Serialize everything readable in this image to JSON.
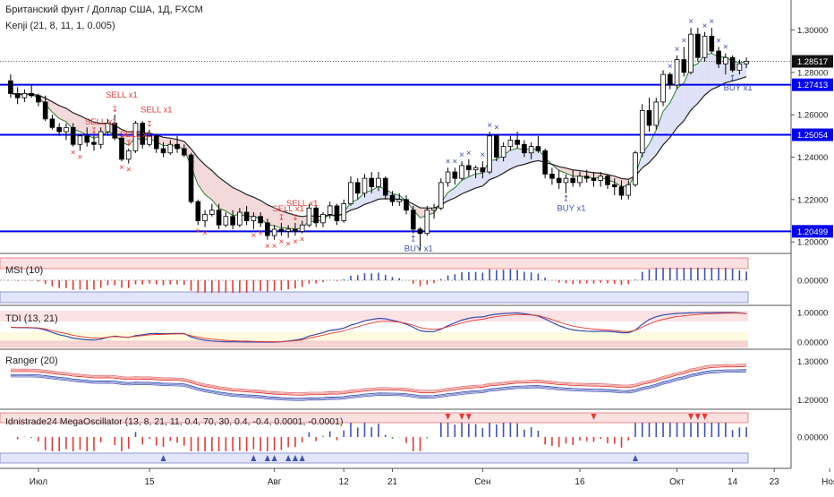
{
  "header": {
    "title": "Британский фунт / Доллар США, 1Д, FXCM",
    "indicator": "Kenji (21, 8, 11, 1, 0.005)"
  },
  "colors": {
    "up": "#ffffff",
    "down": "#000000",
    "level": "#0000ee",
    "sell": "#e53935",
    "buy": "#3f51b5",
    "cloud_pink": "#f3d9d9",
    "cloud_blue": "#dfe2f7"
  },
  "chart_data": [
    {
      "type": "candlestick",
      "name": "main",
      "y_ticks": [
        "1.30000",
        "1.28000",
        "1.26000",
        "1.24000",
        "1.22000",
        "1.20000"
      ],
      "ylim": [
        1.195,
        1.312
      ],
      "x_ticks": [
        "Июл",
        "15",
        "Авг",
        "12",
        "21",
        "Сен",
        "16",
        "Окт",
        "14",
        "23",
        "Ноя"
      ],
      "current_price": "1.28517",
      "levels": [
        "1.27413",
        "1.25054",
        "1.20499"
      ],
      "candles": [
        [
          1.276,
          1.279,
          1.268,
          1.27
        ],
        [
          1.27,
          1.273,
          1.265,
          1.268
        ],
        [
          1.268,
          1.272,
          1.266,
          1.27
        ],
        [
          1.27,
          1.274,
          1.268,
          1.269
        ],
        [
          1.269,
          1.27,
          1.264,
          1.266
        ],
        [
          1.266,
          1.269,
          1.257,
          1.258
        ],
        [
          1.258,
          1.26,
          1.253,
          1.254
        ],
        [
          1.254,
          1.256,
          1.25,
          1.252
        ],
        [
          1.252,
          1.256,
          1.248,
          1.254
        ],
        [
          1.254,
          1.256,
          1.245,
          1.246
        ],
        [
          1.246,
          1.251,
          1.243,
          1.25
        ],
        [
          1.25,
          1.254,
          1.245,
          1.247
        ],
        [
          1.247,
          1.25,
          1.243,
          1.246
        ],
        [
          1.246,
          1.254,
          1.244,
          1.252
        ],
        [
          1.252,
          1.258,
          1.25,
          1.256
        ],
        [
          1.256,
          1.26,
          1.248,
          1.249
        ],
        [
          1.249,
          1.25,
          1.238,
          1.239
        ],
        [
          1.239,
          1.244,
          1.237,
          1.243
        ],
        [
          1.243,
          1.257,
          1.242,
          1.256
        ],
        [
          1.256,
          1.257,
          1.244,
          1.246
        ],
        [
          1.246,
          1.253,
          1.245,
          1.25
        ],
        [
          1.25,
          1.251,
          1.242,
          1.244
        ],
        [
          1.244,
          1.247,
          1.24,
          1.242
        ],
        [
          1.242,
          1.248,
          1.241,
          1.246
        ],
        [
          1.246,
          1.25,
          1.242,
          1.244
        ],
        [
          1.244,
          1.246,
          1.24,
          1.241
        ],
        [
          1.241,
          1.242,
          1.218,
          1.219
        ],
        [
          1.219,
          1.22,
          1.208,
          1.21
        ],
        [
          1.21,
          1.215,
          1.207,
          1.213
        ],
        [
          1.213,
          1.218,
          1.212,
          1.215
        ],
        [
          1.215,
          1.218,
          1.206,
          1.208
        ],
        [
          1.208,
          1.214,
          1.207,
          1.212
        ],
        [
          1.212,
          1.215,
          1.206,
          1.208
        ],
        [
          1.208,
          1.216,
          1.207,
          1.214
        ],
        [
          1.214,
          1.217,
          1.208,
          1.21
        ],
        [
          1.21,
          1.214,
          1.206,
          1.212
        ],
        [
          1.212,
          1.214,
          1.207,
          1.209
        ],
        [
          1.209,
          1.211,
          1.201,
          1.203
        ],
        [
          1.203,
          1.208,
          1.201,
          1.206
        ],
        [
          1.206,
          1.209,
          1.203,
          1.205
        ],
        [
          1.205,
          1.208,
          1.202,
          1.206
        ],
        [
          1.206,
          1.209,
          1.203,
          1.205
        ],
        [
          1.205,
          1.21,
          1.204,
          1.208
        ],
        [
          1.208,
          1.218,
          1.207,
          1.216
        ],
        [
          1.216,
          1.217,
          1.207,
          1.209
        ],
        [
          1.209,
          1.214,
          1.207,
          1.213
        ],
        [
          1.213,
          1.219,
          1.211,
          1.217
        ],
        [
          1.217,
          1.218,
          1.208,
          1.21
        ],
        [
          1.21,
          1.22,
          1.209,
          1.218
        ],
        [
          1.218,
          1.231,
          1.217,
          1.228
        ],
        [
          1.228,
          1.23,
          1.22,
          1.223
        ],
        [
          1.223,
          1.232,
          1.221,
          1.23
        ],
        [
          1.23,
          1.233,
          1.223,
          1.226
        ],
        [
          1.226,
          1.233,
          1.224,
          1.23
        ],
        [
          1.23,
          1.231,
          1.22,
          1.222
        ],
        [
          1.222,
          1.224,
          1.217,
          1.219
        ],
        [
          1.219,
          1.223,
          1.217,
          1.22
        ],
        [
          1.22,
          1.222,
          1.213,
          1.215
        ],
        [
          1.215,
          1.217,
          1.204,
          1.206
        ],
        [
          1.206,
          1.207,
          1.196,
          1.204
        ],
        [
          1.204,
          1.217,
          1.203,
          1.215
        ],
        [
          1.215,
          1.218,
          1.211,
          1.216
        ],
        [
          1.216,
          1.23,
          1.215,
          1.228
        ],
        [
          1.228,
          1.235,
          1.226,
          1.233
        ],
        [
          1.233,
          1.235,
          1.227,
          1.23
        ],
        [
          1.23,
          1.238,
          1.229,
          1.236
        ],
        [
          1.236,
          1.239,
          1.231,
          1.234
        ],
        [
          1.234,
          1.236,
          1.23,
          1.235
        ],
        [
          1.235,
          1.238,
          1.23,
          1.233
        ],
        [
          1.233,
          1.252,
          1.232,
          1.25
        ],
        [
          1.25,
          1.251,
          1.238,
          1.24
        ],
        [
          1.24,
          1.247,
          1.238,
          1.245
        ],
        [
          1.245,
          1.25,
          1.243,
          1.248
        ],
        [
          1.248,
          1.252,
          1.244,
          1.246
        ],
        [
          1.246,
          1.248,
          1.24,
          1.242
        ],
        [
          1.242,
          1.247,
          1.239,
          1.245
        ],
        [
          1.245,
          1.25,
          1.242,
          1.243
        ],
        [
          1.243,
          1.244,
          1.23,
          1.232
        ],
        [
          1.232,
          1.235,
          1.227,
          1.23
        ],
        [
          1.23,
          1.234,
          1.225,
          1.228
        ],
        [
          1.228,
          1.232,
          1.223,
          1.23
        ],
        [
          1.23,
          1.234,
          1.226,
          1.228
        ],
        [
          1.228,
          1.233,
          1.226,
          1.231
        ],
        [
          1.231,
          1.234,
          1.228,
          1.23
        ],
        [
          1.23,
          1.233,
          1.226,
          1.229
        ],
        [
          1.229,
          1.233,
          1.226,
          1.231
        ],
        [
          1.231,
          1.232,
          1.225,
          1.227
        ],
        [
          1.227,
          1.23,
          1.222,
          1.226
        ],
        [
          1.226,
          1.229,
          1.22,
          1.222
        ],
        [
          1.222,
          1.229,
          1.22,
          1.227
        ],
        [
          1.227,
          1.243,
          1.226,
          1.242
        ],
        [
          1.242,
          1.265,
          1.24,
          1.262
        ],
        [
          1.262,
          1.268,
          1.252,
          1.255
        ],
        [
          1.255,
          1.268,
          1.253,
          1.266
        ],
        [
          1.266,
          1.281,
          1.264,
          1.279
        ],
        [
          1.279,
          1.28,
          1.272,
          1.274
        ],
        [
          1.274,
          1.288,
          1.272,
          1.286
        ],
        [
          1.286,
          1.292,
          1.278,
          1.28
        ],
        [
          1.28,
          1.301,
          1.279,
          1.298
        ],
        [
          1.298,
          1.301,
          1.285,
          1.287
        ],
        [
          1.287,
          1.299,
          1.285,
          1.297
        ],
        [
          1.297,
          1.301,
          1.289,
          1.29
        ],
        [
          1.29,
          1.292,
          1.282,
          1.284
        ],
        [
          1.284,
          1.289,
          1.279,
          1.287
        ],
        [
          1.287,
          1.288,
          1.28,
          1.281
        ],
        [
          1.281,
          1.286,
          1.279,
          1.284
        ],
        [
          1.284,
          1.287,
          1.282,
          1.2852
        ]
      ],
      "annotations": [
        "SELL x1",
        "SELL x1",
        "SELL x1",
        "SELL x1",
        "SELL x1",
        "SELL x1",
        "BUY x1",
        "BUY x1",
        "BUY x1"
      ]
    },
    {
      "type": "histogram",
      "name": "MSI (10)",
      "y_ticks": [
        "0.00000"
      ]
    },
    {
      "type": "line",
      "name": "TDI (13, 21)",
      "y_ticks": [
        "1.00000",
        "0.00000"
      ]
    },
    {
      "type": "line",
      "name": "Ranger (20)",
      "y_ticks": [
        "1.30000",
        "1.20000"
      ]
    },
    {
      "type": "histogram",
      "name": "Idnistrade24 MegaOscillator (13, 8, 21, 11, 0.4, 70, 30, 0.4, -0.4, 0.0001, -0.0001)",
      "y_ticks": [
        "0.00000"
      ]
    }
  ]
}
